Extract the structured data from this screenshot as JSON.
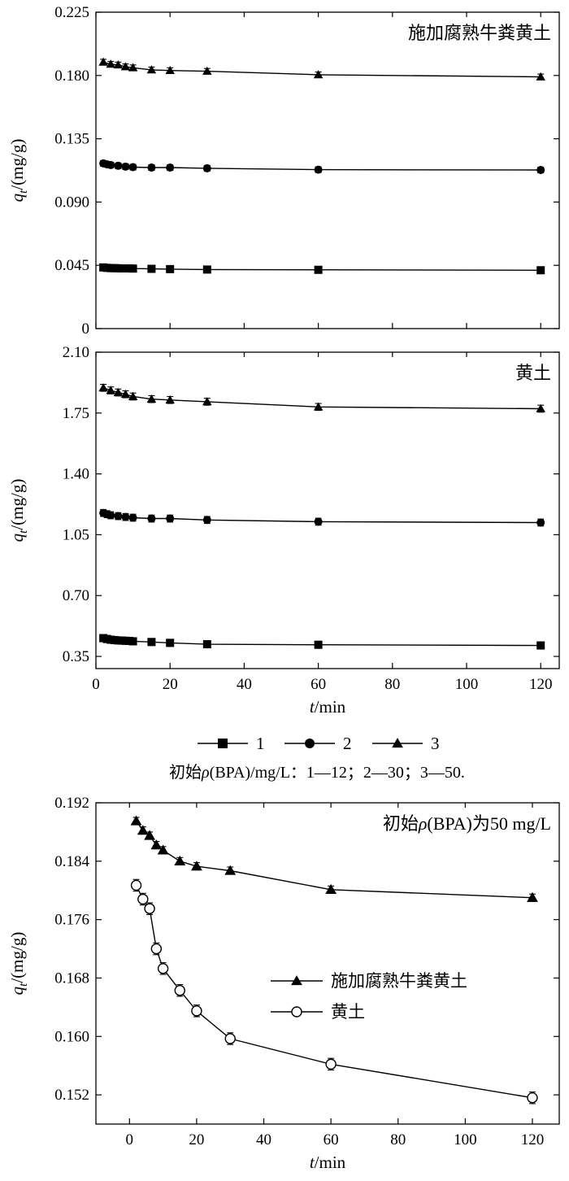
{
  "caption": "初始ρ(BPA)/mg/L：1—12；2—30；3—50.",
  "legend_top": [
    {
      "label": "1",
      "marker": "square"
    },
    {
      "label": "2",
      "marker": "circle"
    },
    {
      "label": "3",
      "marker": "triangle"
    }
  ],
  "chart_data": [
    {
      "type": "line",
      "title": "施加腐熟牛粪黄土",
      "ylabel": "q_t/(mg/g)",
      "xlabel": "",
      "xlim": [
        0,
        125
      ],
      "ylim": [
        0,
        0.225
      ],
      "yticks": [
        "0",
        "0.045",
        "0.090",
        "0.135",
        "0.180",
        "0.225"
      ],
      "xticks": [],
      "series": [
        {
          "name": "1",
          "marker": "square",
          "x": [
            2,
            3,
            4,
            5,
            6,
            7,
            8,
            9,
            10,
            15,
            20,
            30,
            60,
            120
          ],
          "y": [
            0.0435,
            0.0432,
            0.043,
            0.043,
            0.0429,
            0.0428,
            0.0428,
            0.0428,
            0.0427,
            0.0425,
            0.0423,
            0.042,
            0.0418,
            0.0415
          ],
          "err": 0.002
        },
        {
          "name": "2",
          "marker": "circle",
          "x": [
            2,
            3,
            4,
            6,
            8,
            10,
            15,
            20,
            30,
            60,
            120
          ],
          "y": [
            0.1175,
            0.1168,
            0.1163,
            0.1158,
            0.1152,
            0.1148,
            0.1145,
            0.1145,
            0.114,
            0.113,
            0.1128
          ],
          "err": 0.002
        },
        {
          "name": "3",
          "marker": "triangle",
          "x": [
            2,
            4,
            6,
            8,
            10,
            15,
            20,
            30,
            60,
            120
          ],
          "y": [
            0.1895,
            0.188,
            0.1875,
            0.1862,
            0.1855,
            0.184,
            0.1835,
            0.183,
            0.1805,
            0.179
          ],
          "err": 0.002
        }
      ]
    },
    {
      "type": "line",
      "title": "黄土",
      "ylabel": "q_t/(mg/g)",
      "xlabel": "t/min",
      "xlim": [
        0,
        125
      ],
      "ylim": [
        0.28,
        2.1
      ],
      "yticks": [
        "0.35",
        "0.70",
        "1.05",
        "1.40",
        "1.75",
        "2.10"
      ],
      "xticks": [
        "0",
        "20",
        "40",
        "60",
        "80",
        "100",
        "120"
      ],
      "series": [
        {
          "name": "1",
          "marker": "square",
          "x": [
            2,
            3,
            4,
            5,
            6,
            7,
            8,
            9,
            10,
            15,
            20,
            30,
            60,
            120
          ],
          "y": [
            0.455,
            0.45,
            0.446,
            0.444,
            0.442,
            0.441,
            0.44,
            0.439,
            0.437,
            0.433,
            0.428,
            0.42,
            0.417,
            0.413
          ],
          "err": 0.02
        },
        {
          "name": "2",
          "marker": "circle",
          "x": [
            2,
            3,
            4,
            6,
            8,
            10,
            15,
            20,
            30,
            60,
            120
          ],
          "y": [
            1.175,
            1.168,
            1.162,
            1.157,
            1.152,
            1.148,
            1.143,
            1.143,
            1.135,
            1.125,
            1.12
          ],
          "err": 0.02
        },
        {
          "name": "3",
          "marker": "triangle",
          "x": [
            2,
            4,
            6,
            8,
            10,
            15,
            20,
            30,
            60,
            120
          ],
          "y": [
            1.895,
            1.88,
            1.868,
            1.858,
            1.845,
            1.83,
            1.825,
            1.815,
            1.785,
            1.775
          ],
          "err": 0.02
        }
      ]
    },
    {
      "type": "line",
      "title": "初始ρ(BPA)为50 mg/L",
      "ylabel": "q_t/(mg/g)",
      "xlabel": "t/min",
      "xlim": [
        -10,
        128
      ],
      "ylim": [
        0.148,
        0.192
      ],
      "yticks": [
        "0.152",
        "0.160",
        "0.168",
        "0.176",
        "0.184",
        "0.192"
      ],
      "xticks": [
        "0",
        "20",
        "40",
        "60",
        "80",
        "100",
        "120"
      ],
      "legend_position": "center-right",
      "series": [
        {
          "name": "施加腐熟牛粪黄土",
          "marker": "triangle",
          "x": [
            2,
            4,
            6,
            8,
            10,
            15,
            20,
            30,
            60,
            120
          ],
          "y": [
            0.1895,
            0.1882,
            0.1875,
            0.1862,
            0.1855,
            0.184,
            0.1833,
            0.1827,
            0.1801,
            0.179
          ],
          "err": 0.0005
        },
        {
          "name": "黄土",
          "marker": "circle-open",
          "x": [
            2,
            4,
            6,
            8,
            10,
            15,
            20,
            30,
            60,
            120
          ],
          "y": [
            0.1807,
            0.1788,
            0.1775,
            0.172,
            0.1693,
            0.1663,
            0.1635,
            0.1597,
            0.1562,
            0.1516
          ],
          "err": 0.0008
        }
      ]
    }
  ]
}
